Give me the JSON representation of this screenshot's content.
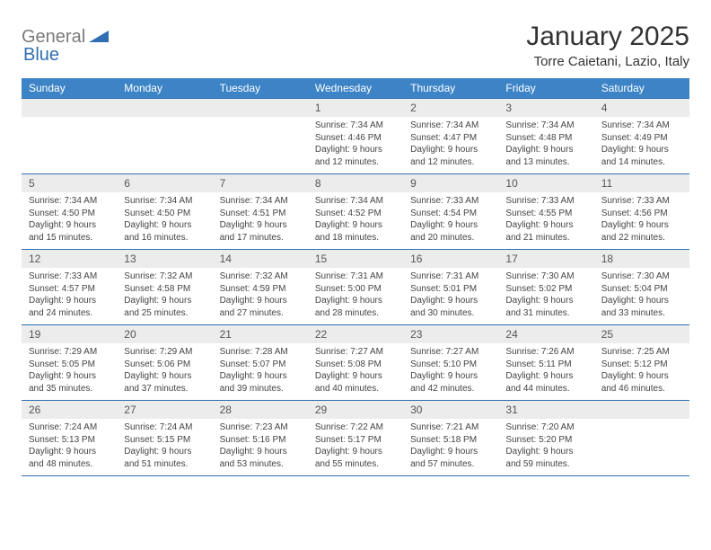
{
  "logo": {
    "text_gray": "General",
    "text_blue": "Blue",
    "accent_color": "#2f6fb3",
    "gray_color": "#7a7a7a"
  },
  "header": {
    "month_title": "January 2025",
    "location": "Torre Caietani, Lazio, Italy"
  },
  "calendar": {
    "day_headers": [
      "Sunday",
      "Monday",
      "Tuesday",
      "Wednesday",
      "Thursday",
      "Friday",
      "Saturday"
    ],
    "header_bg": "#3d84c6",
    "header_fg": "#ffffff",
    "daynum_bg": "#ececec",
    "border_color": "#2f6fb3",
    "font_size_header": 12,
    "font_size_daynum": 12,
    "font_size_body": 10,
    "weeks": [
      [
        null,
        null,
        null,
        {
          "n": "1",
          "sunrise": "7:34 AM",
          "sunset": "4:46 PM",
          "dl_h": "9",
          "dl_m": "12"
        },
        {
          "n": "2",
          "sunrise": "7:34 AM",
          "sunset": "4:47 PM",
          "dl_h": "9",
          "dl_m": "12"
        },
        {
          "n": "3",
          "sunrise": "7:34 AM",
          "sunset": "4:48 PM",
          "dl_h": "9",
          "dl_m": "13"
        },
        {
          "n": "4",
          "sunrise": "7:34 AM",
          "sunset": "4:49 PM",
          "dl_h": "9",
          "dl_m": "14"
        }
      ],
      [
        {
          "n": "5",
          "sunrise": "7:34 AM",
          "sunset": "4:50 PM",
          "dl_h": "9",
          "dl_m": "15"
        },
        {
          "n": "6",
          "sunrise": "7:34 AM",
          "sunset": "4:50 PM",
          "dl_h": "9",
          "dl_m": "16"
        },
        {
          "n": "7",
          "sunrise": "7:34 AM",
          "sunset": "4:51 PM",
          "dl_h": "9",
          "dl_m": "17"
        },
        {
          "n": "8",
          "sunrise": "7:34 AM",
          "sunset": "4:52 PM",
          "dl_h": "9",
          "dl_m": "18"
        },
        {
          "n": "9",
          "sunrise": "7:33 AM",
          "sunset": "4:54 PM",
          "dl_h": "9",
          "dl_m": "20"
        },
        {
          "n": "10",
          "sunrise": "7:33 AM",
          "sunset": "4:55 PM",
          "dl_h": "9",
          "dl_m": "21"
        },
        {
          "n": "11",
          "sunrise": "7:33 AM",
          "sunset": "4:56 PM",
          "dl_h": "9",
          "dl_m": "22"
        }
      ],
      [
        {
          "n": "12",
          "sunrise": "7:33 AM",
          "sunset": "4:57 PM",
          "dl_h": "9",
          "dl_m": "24"
        },
        {
          "n": "13",
          "sunrise": "7:32 AM",
          "sunset": "4:58 PM",
          "dl_h": "9",
          "dl_m": "25"
        },
        {
          "n": "14",
          "sunrise": "7:32 AM",
          "sunset": "4:59 PM",
          "dl_h": "9",
          "dl_m": "27"
        },
        {
          "n": "15",
          "sunrise": "7:31 AM",
          "sunset": "5:00 PM",
          "dl_h": "9",
          "dl_m": "28"
        },
        {
          "n": "16",
          "sunrise": "7:31 AM",
          "sunset": "5:01 PM",
          "dl_h": "9",
          "dl_m": "30"
        },
        {
          "n": "17",
          "sunrise": "7:30 AM",
          "sunset": "5:02 PM",
          "dl_h": "9",
          "dl_m": "31"
        },
        {
          "n": "18",
          "sunrise": "7:30 AM",
          "sunset": "5:04 PM",
          "dl_h": "9",
          "dl_m": "33"
        }
      ],
      [
        {
          "n": "19",
          "sunrise": "7:29 AM",
          "sunset": "5:05 PM",
          "dl_h": "9",
          "dl_m": "35"
        },
        {
          "n": "20",
          "sunrise": "7:29 AM",
          "sunset": "5:06 PM",
          "dl_h": "9",
          "dl_m": "37"
        },
        {
          "n": "21",
          "sunrise": "7:28 AM",
          "sunset": "5:07 PM",
          "dl_h": "9",
          "dl_m": "39"
        },
        {
          "n": "22",
          "sunrise": "7:27 AM",
          "sunset": "5:08 PM",
          "dl_h": "9",
          "dl_m": "40"
        },
        {
          "n": "23",
          "sunrise": "7:27 AM",
          "sunset": "5:10 PM",
          "dl_h": "9",
          "dl_m": "42"
        },
        {
          "n": "24",
          "sunrise": "7:26 AM",
          "sunset": "5:11 PM",
          "dl_h": "9",
          "dl_m": "44"
        },
        {
          "n": "25",
          "sunrise": "7:25 AM",
          "sunset": "5:12 PM",
          "dl_h": "9",
          "dl_m": "46"
        }
      ],
      [
        {
          "n": "26",
          "sunrise": "7:24 AM",
          "sunset": "5:13 PM",
          "dl_h": "9",
          "dl_m": "48"
        },
        {
          "n": "27",
          "sunrise": "7:24 AM",
          "sunset": "5:15 PM",
          "dl_h": "9",
          "dl_m": "51"
        },
        {
          "n": "28",
          "sunrise": "7:23 AM",
          "sunset": "5:16 PM",
          "dl_h": "9",
          "dl_m": "53"
        },
        {
          "n": "29",
          "sunrise": "7:22 AM",
          "sunset": "5:17 PM",
          "dl_h": "9",
          "dl_m": "55"
        },
        {
          "n": "30",
          "sunrise": "7:21 AM",
          "sunset": "5:18 PM",
          "dl_h": "9",
          "dl_m": "57"
        },
        {
          "n": "31",
          "sunrise": "7:20 AM",
          "sunset": "5:20 PM",
          "dl_h": "9",
          "dl_m": "59"
        },
        null
      ]
    ]
  }
}
